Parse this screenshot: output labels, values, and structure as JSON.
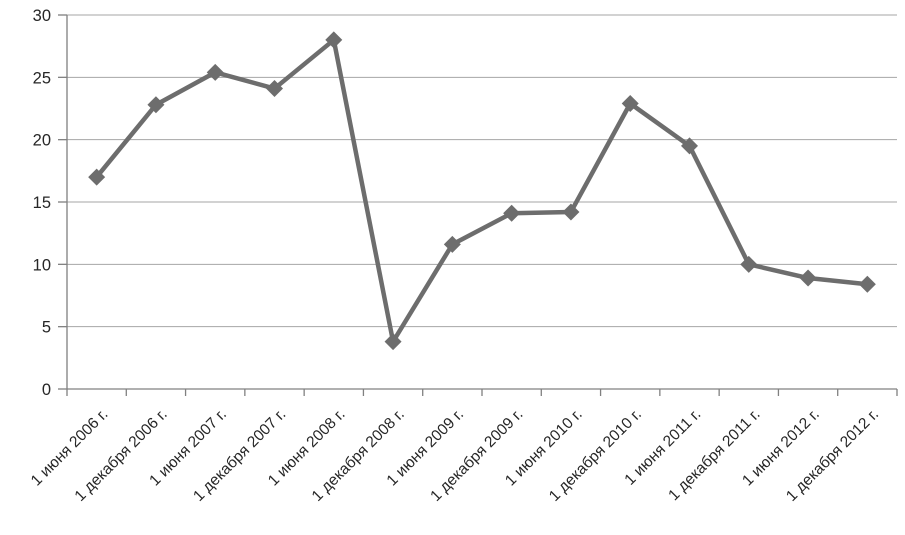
{
  "chart_data": {
    "type": "line",
    "categories": [
      "1 июня 2006 г.",
      "1 декабря 2006 г.",
      "1 июня 2007 г.",
      "1 декабря 2007 г.",
      "1 июня 2008 г.",
      "1 декабря 2008 г.",
      "1 июня 2009 г.",
      "1 декабря 2009 г.",
      "1 июня 2010 г.",
      "1 декабря 2010 г.",
      "1 июня 2011 г.",
      "1 декабря 2011 г.",
      "1 июня 2012 г.",
      "1 декабря 2012 г."
    ],
    "values": [
      17.0,
      22.8,
      25.4,
      24.1,
      28.0,
      3.8,
      11.6,
      14.1,
      14.2,
      22.9,
      19.5,
      10.0,
      8.9,
      8.4
    ],
    "title": "",
    "xlabel": "",
    "ylabel": "",
    "ylim": [
      0,
      30
    ],
    "yticks": [
      0,
      5,
      10,
      15,
      20,
      25,
      30
    ],
    "grid": "horizontal",
    "legend": "none",
    "marker": "diamond",
    "colors": {
      "line": "#6d6d6d",
      "marker": "#6d6d6d",
      "grid": "#a6a6a6",
      "axis": "#808080",
      "text": "#262626",
      "background": "#ffffff"
    }
  }
}
